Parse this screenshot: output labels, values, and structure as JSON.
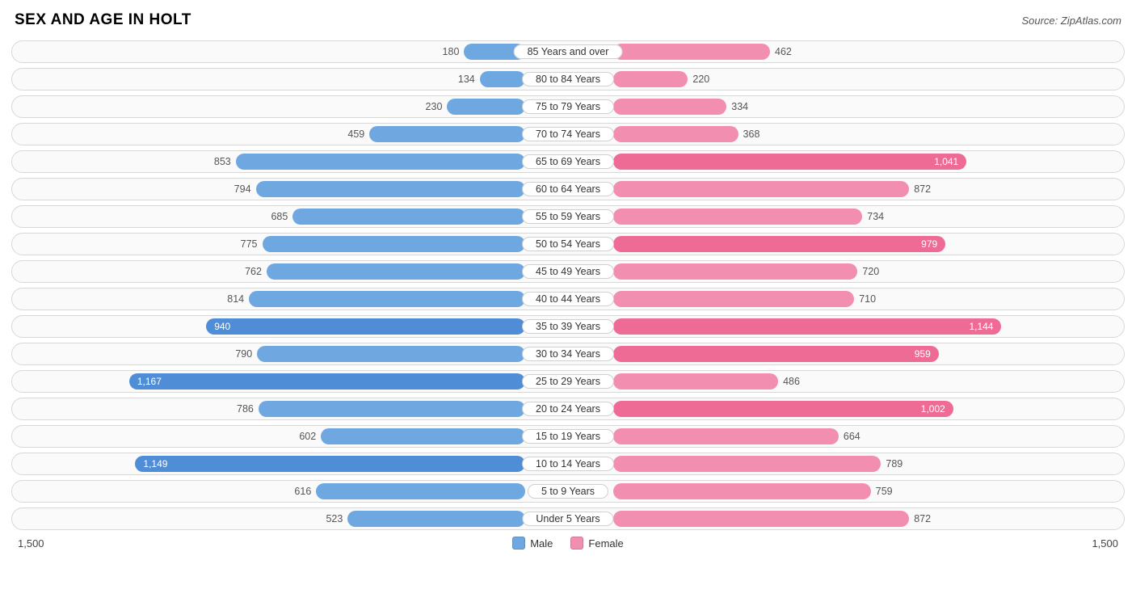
{
  "title": "SEX AND AGE IN HOLT",
  "source": "Source: ZipAtlas.com",
  "chart": {
    "type": "population-pyramid",
    "axis_max": 1500,
    "axis_label": "1,500",
    "male_color": "#6fa8e0",
    "male_color_strong": "#4f8ed6",
    "female_color": "#f28fb0",
    "female_color_strong": "#ee6b95",
    "label_bg": "#ffffff",
    "label_border": "#d0d0d0",
    "row_border": "#d8d8d8",
    "text_color": "#555555",
    "inside_text_color": "#ffffff",
    "inside_threshold": 900,
    "legend": {
      "male": "Male",
      "female": "Female"
    },
    "rows": [
      {
        "age": "85 Years and over",
        "male": 180,
        "female": 462
      },
      {
        "age": "80 to 84 Years",
        "male": 134,
        "female": 220
      },
      {
        "age": "75 to 79 Years",
        "male": 230,
        "female": 334
      },
      {
        "age": "70 to 74 Years",
        "male": 459,
        "female": 368
      },
      {
        "age": "65 to 69 Years",
        "male": 853,
        "female": 1041
      },
      {
        "age": "60 to 64 Years",
        "male": 794,
        "female": 872
      },
      {
        "age": "55 to 59 Years",
        "male": 685,
        "female": 734
      },
      {
        "age": "50 to 54 Years",
        "male": 775,
        "female": 979
      },
      {
        "age": "45 to 49 Years",
        "male": 762,
        "female": 720
      },
      {
        "age": "40 to 44 Years",
        "male": 814,
        "female": 710
      },
      {
        "age": "35 to 39 Years",
        "male": 940,
        "female": 1144
      },
      {
        "age": "30 to 34 Years",
        "male": 790,
        "female": 959
      },
      {
        "age": "25 to 29 Years",
        "male": 1167,
        "female": 486
      },
      {
        "age": "20 to 24 Years",
        "male": 786,
        "female": 1002
      },
      {
        "age": "15 to 19 Years",
        "male": 602,
        "female": 664
      },
      {
        "age": "10 to 14 Years",
        "male": 1149,
        "female": 789
      },
      {
        "age": "5 to 9 Years",
        "male": 616,
        "female": 759
      },
      {
        "age": "Under 5 Years",
        "male": 523,
        "female": 872
      }
    ]
  }
}
